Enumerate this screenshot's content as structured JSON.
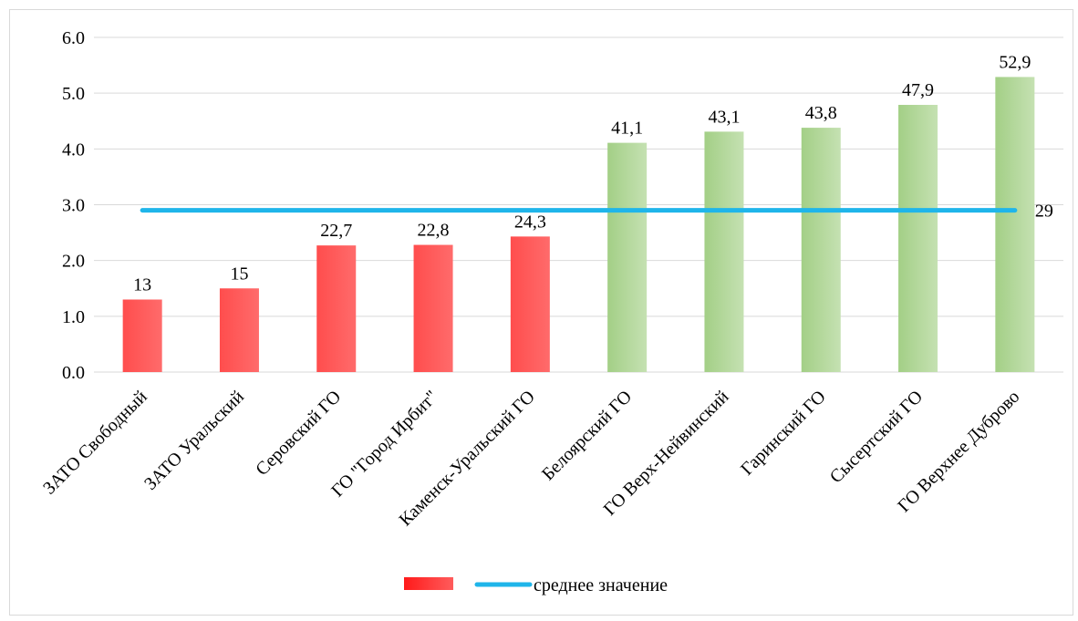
{
  "chart_data": {
    "type": "bar",
    "categories": [
      "ЗАТО Свободный",
      "ЗАТО Уральский",
      "Серовский ГО",
      "ГО \"Город Ирбит\"",
      "Каменск-Уральский ГО",
      "Белоярский ГО",
      "ГО Верх-Нейвинский",
      "Гаринский ГО",
      "Сысертский ГО",
      "ГО Верхнее Дуброво"
    ],
    "values": [
      1.3,
      1.5,
      2.27,
      2.28,
      2.43,
      4.11,
      4.31,
      4.38,
      4.79,
      5.29
    ],
    "data_labels": [
      "13",
      "15",
      "22,7",
      "22,8",
      "24,3",
      "41,1",
      "43,1",
      "43,8",
      "47,9",
      "52,9"
    ],
    "bar_colors": [
      "#ff5a5a",
      "#ff5a5a",
      "#ff5a5a",
      "#ff5a5a",
      "#ff5a5a",
      "#a9d18e",
      "#a9d18e",
      "#a9d18e",
      "#a9d18e",
      "#a9d18e"
    ],
    "average_line": {
      "value": 2.9,
      "label": "29",
      "color": "#1fb5ea"
    },
    "y_ticks": [
      "0.0",
      "1.0",
      "2.0",
      "3.0",
      "4.0",
      "5.0",
      "6.0"
    ],
    "ylim": [
      0,
      6
    ],
    "grid": true,
    "legend": {
      "position": "bottom",
      "entries": [
        {
          "type": "bar",
          "label": "",
          "color": "#ff2a2a"
        },
        {
          "type": "line",
          "label": "среднее значение",
          "color": "#1fb5ea"
        }
      ]
    }
  }
}
